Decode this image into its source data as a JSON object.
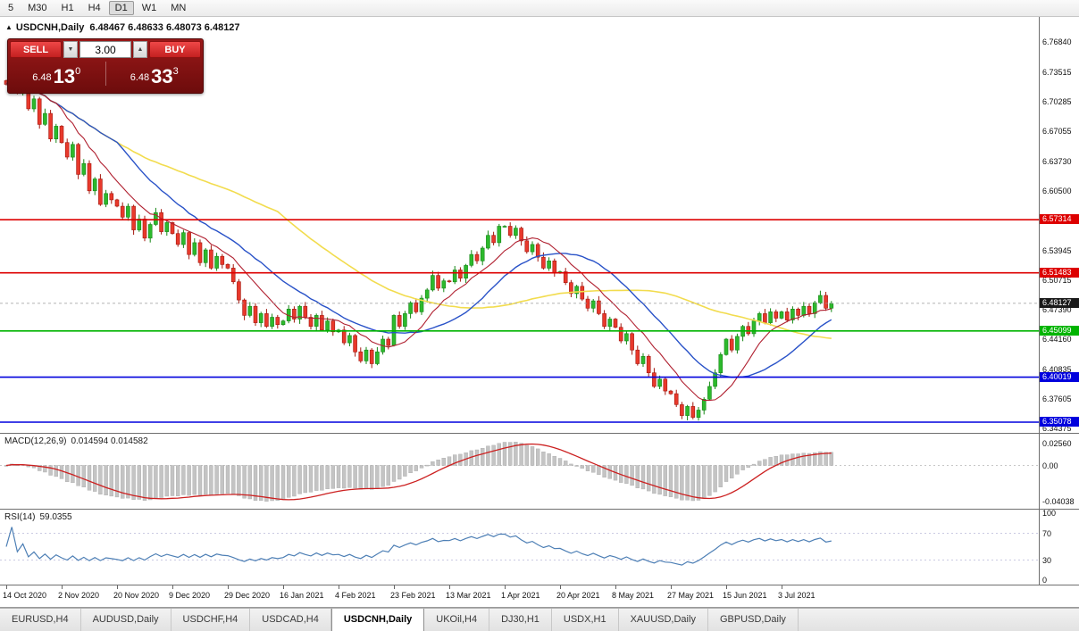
{
  "toolbar": {
    "timeframes": [
      "5",
      "M30",
      "H1",
      "H4",
      "D1",
      "W1",
      "MN"
    ]
  },
  "symbol_info": {
    "collapse_icon": "▲",
    "title": "USDCNH,Daily",
    "ohlc": "6.48467 6.48633 6.48073 6.48127"
  },
  "trade_panel": {
    "sell_label": "SELL",
    "buy_label": "BUY",
    "volume": "3.00",
    "spin_down": "▼",
    "spin_up": "▲",
    "sell_price": {
      "small": "6.48",
      "big": "13",
      "sup": "0"
    },
    "buy_price": {
      "small": "6.48",
      "big": "33",
      "sup": "3"
    }
  },
  "price_axis": {
    "labels": [
      "6.76840",
      "6.73515",
      "6.70285",
      "6.67055",
      "6.63730",
      "6.60500",
      "6.57270",
      "6.53945",
      "6.50715",
      "6.47390",
      "6.44160",
      "6.40835",
      "6.37605",
      "6.34375"
    ]
  },
  "hlines": [
    {
      "price": 6.57314,
      "label": "6.57314",
      "color": "#dd0000"
    },
    {
      "price": 6.51483,
      "label": "6.51483",
      "color": "#dd0000"
    },
    {
      "price": 6.45099,
      "label": "6.45099",
      "color": "#00b400"
    },
    {
      "price": 6.40019,
      "label": "6.40019",
      "color": "#0000dd"
    },
    {
      "price": 6.35078,
      "label": "6.35078",
      "color": "#0000dd"
    }
  ],
  "current_price": {
    "value": 6.48127,
    "label": "6.48127",
    "box_color": "#1a1a1a"
  },
  "macd_panel": {
    "name": "MACD(12,26,9)",
    "values": "0.014594 0.014582",
    "axis_top": "0.02560",
    "axis_zero": "0.00",
    "axis_bottom": "-0.04038"
  },
  "rsi_panel": {
    "name": "RSI(14)",
    "value": "59.0355",
    "axis": [
      "100",
      "70",
      "30",
      "0"
    ],
    "levels": [
      70,
      30
    ]
  },
  "tabs": {
    "active": "USDCNH,Daily",
    "items": [
      "EURUSD,H4",
      "AUDUSD,Daily",
      "USDCHF,H4",
      "USDCAD,H4",
      "USDCNH,Daily",
      "UKOil,H4",
      "DJ30,H1",
      "USDX,H1",
      "XAUUSD,Daily",
      "GBPUSD,Daily"
    ]
  },
  "chart_data": {
    "type": "candlestick",
    "symbol": "USDCNH",
    "timeframe": "Daily",
    "title": "USDCNH,Daily",
    "ylim": [
      6.338,
      6.796
    ],
    "grid": false,
    "bars_per_date_label": 10,
    "date_labels": [
      "14 Oct 2020",
      "2 Nov 2020",
      "20 Nov 2020",
      "9 Dec 2020",
      "29 Dec 2020",
      "16 Jan 2021",
      "4 Feb 2021",
      "23 Feb 2021",
      "13 Mar 2021",
      "1 Apr 2021",
      "20 Apr 2021",
      "8 May 2021",
      "27 May 2021",
      "15 Jun 2021",
      "3 Jul 2021"
    ],
    "closes": [
      6.722,
      6.7405,
      6.715,
      6.728,
      6.695,
      6.706,
      6.678,
      6.69,
      6.662,
      6.676,
      6.658,
      6.642,
      6.656,
      6.623,
      6.635,
      6.605,
      6.618,
      6.59,
      6.602,
      6.595,
      6.588,
      6.576,
      6.588,
      6.562,
      6.574,
      6.553,
      6.568,
      6.581,
      6.56,
      6.57,
      6.558,
      6.546,
      6.559,
      6.535,
      6.548,
      6.526,
      6.54,
      6.52,
      6.533,
      6.524,
      6.52,
      6.505,
      6.485,
      6.468,
      6.478,
      6.46,
      6.47,
      6.456,
      6.466,
      6.458,
      6.462,
      6.475,
      6.464,
      6.478,
      6.466,
      6.456,
      6.468,
      6.452,
      6.462,
      6.45,
      6.452,
      6.438,
      6.446,
      6.428,
      6.418,
      6.43,
      6.415,
      6.428,
      6.442,
      6.435,
      6.468,
      6.456,
      6.47,
      6.482,
      6.472,
      6.487,
      6.496,
      6.512,
      6.498,
      6.506,
      6.505,
      6.518,
      6.509,
      6.523,
      6.535,
      6.528,
      6.542,
      6.556,
      6.548,
      6.566,
      6.566,
      6.556,
      6.564,
      6.55,
      6.538,
      6.546,
      6.532,
      6.52,
      6.528,
      6.515,
      6.516,
      6.504,
      6.492,
      6.5,
      6.486,
      6.476,
      6.484,
      6.47,
      6.456,
      6.464,
      6.455,
      6.44,
      6.448,
      6.43,
      6.415,
      6.423,
      6.405,
      6.39,
      6.398,
      6.385,
      6.382,
      6.37,
      6.358,
      6.368,
      6.356,
      6.364,
      6.376,
      6.39,
      6.405,
      6.425,
      6.442,
      6.43,
      6.445,
      6.456,
      6.448,
      6.462,
      6.47,
      6.46,
      6.472,
      6.465,
      6.472,
      6.463,
      6.475,
      6.468,
      6.478,
      6.47,
      6.482,
      6.49,
      6.476,
      6.48127
    ],
    "moving_averages": [
      {
        "period": 50,
        "color": "#f2dc4e",
        "width": 1.6
      },
      {
        "period": 21,
        "color": "#2952c8",
        "width": 1.4
      },
      {
        "period": 10,
        "color": "#b02030",
        "width": 1.1
      }
    ],
    "indicators": {
      "macd": {
        "fast": 12,
        "slow": 26,
        "signal": 9
      },
      "rsi": {
        "period": 14
      }
    },
    "colors": {
      "candle_up": "#2db92d",
      "candle_up_edge": "#158715",
      "candle_down": "#e8392c",
      "candle_down_edge": "#a3170e",
      "macd_histogram": "#c4c4c4",
      "macd_signal": "#cc2020",
      "rsi_line": "#4d7fb5"
    }
  }
}
